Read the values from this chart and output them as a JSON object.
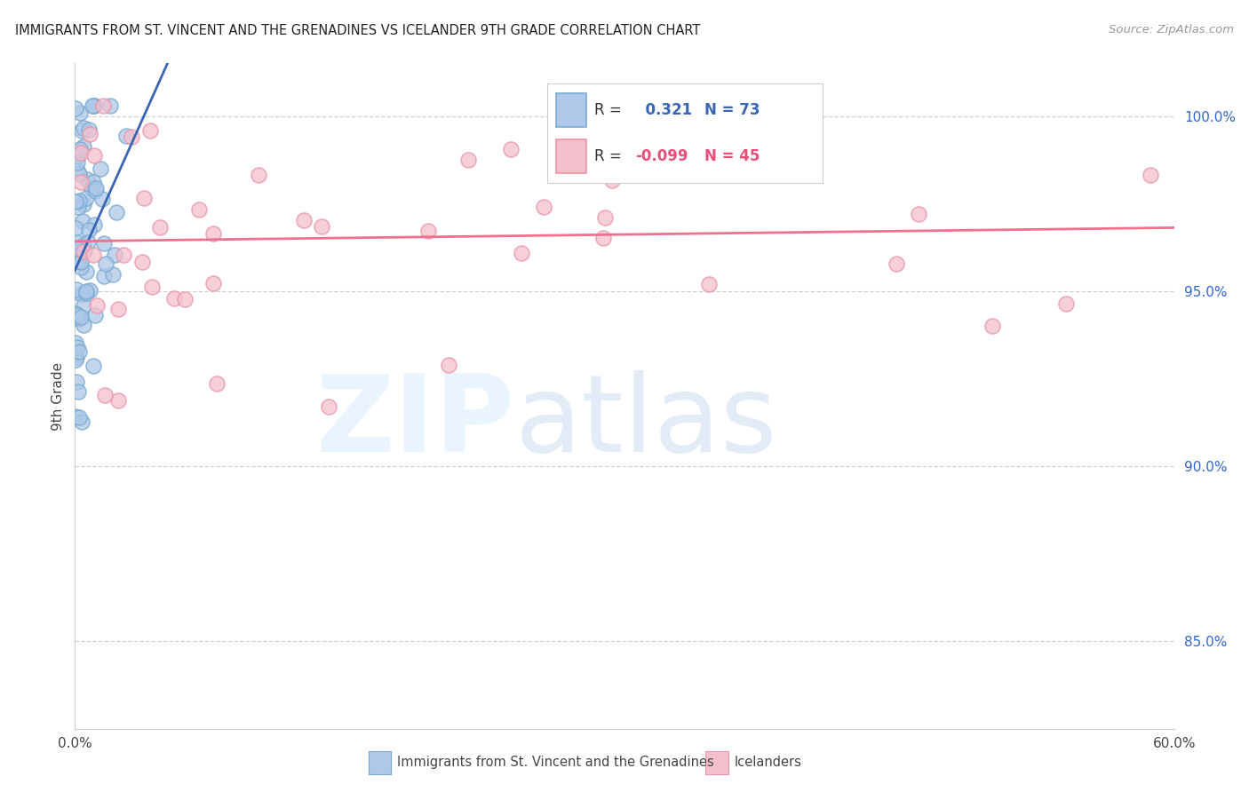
{
  "title": "IMMIGRANTS FROM ST. VINCENT AND THE GRENADINES VS ICELANDER 9TH GRADE CORRELATION CHART",
  "source": "Source: ZipAtlas.com",
  "label_blue": "Immigrants from St. Vincent and the Grenadines",
  "label_pink": "Icelanders",
  "ylabel": "9th Grade",
  "xlim": [
    0.0,
    0.6
  ],
  "ylim": [
    0.825,
    1.015
  ],
  "yticks": [
    0.85,
    0.9,
    0.95,
    1.0
  ],
  "ytick_labels": [
    "85.0%",
    "90.0%",
    "95.0%",
    "100.0%"
  ],
  "xticks": [
    0.0,
    0.1,
    0.2,
    0.3,
    0.4,
    0.5,
    0.6
  ],
  "xtick_labels": [
    "0.0%",
    "",
    "",
    "",
    "",
    "",
    "60.0%"
  ],
  "blue_R": 0.321,
  "blue_N": 73,
  "pink_R": -0.099,
  "pink_N": 45,
  "blue_fill": "#adc8e8",
  "blue_edge": "#7aaacf",
  "pink_fill": "#f5bfcc",
  "pink_edge": "#e896aa",
  "blue_line": "#3a65b5",
  "pink_line": "#f07090",
  "grid_color": "#d0d0d0",
  "legend_box_color": "#f0f0f0",
  "blue_R_color": "#3a65b5",
  "pink_R_color": "#e8507a"
}
